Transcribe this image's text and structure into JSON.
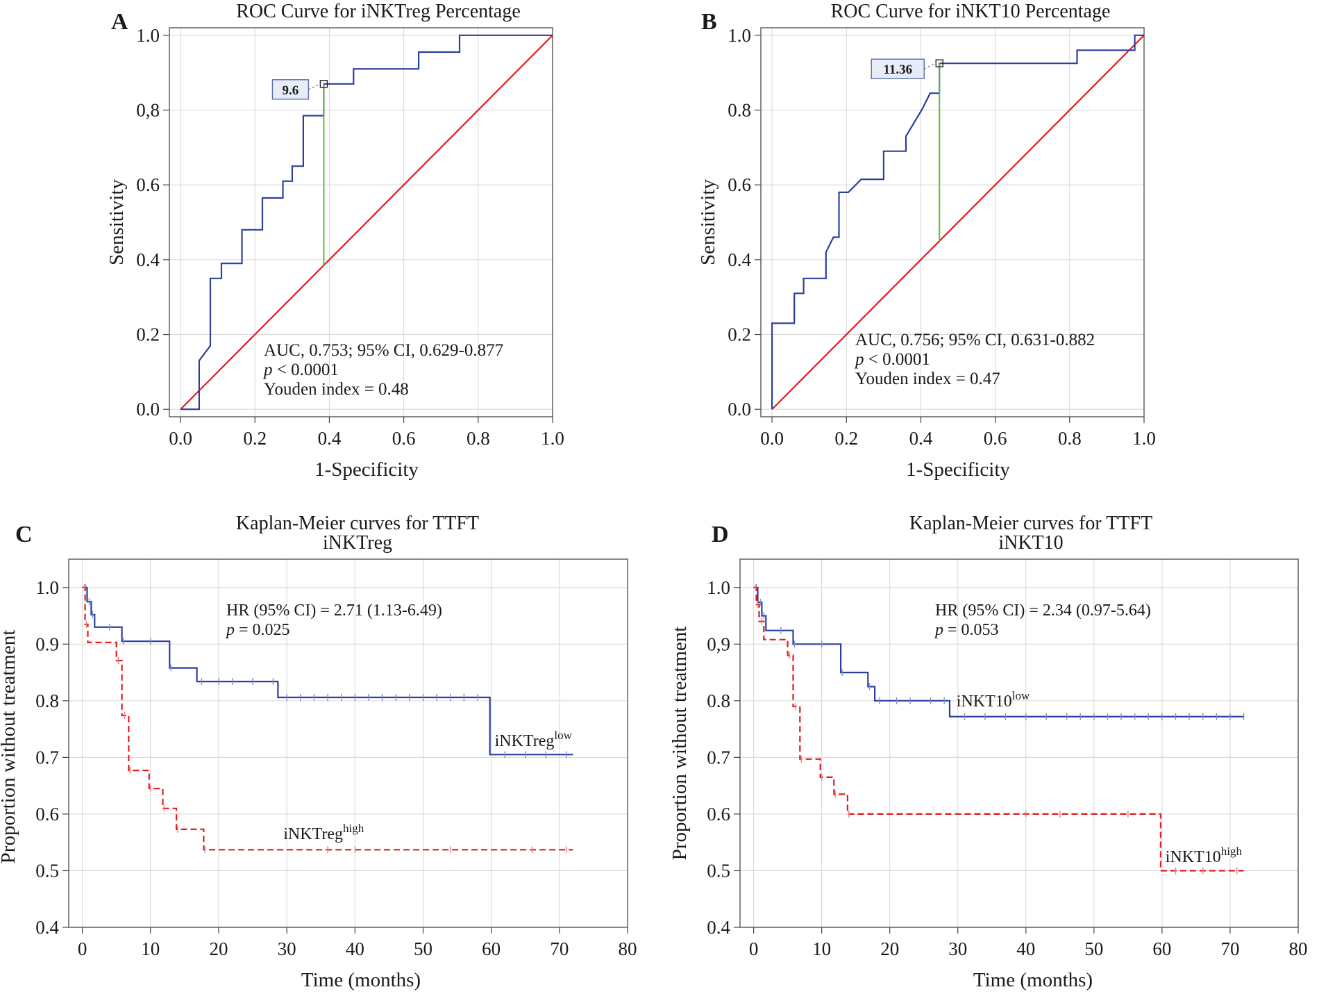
{
  "chart_data": [
    {
      "panel": "A",
      "type": "line",
      "title": "ROC Curve for iNKTreg Percentage",
      "xlabel": "1-Specificity",
      "ylabel": "Sensitivity",
      "xlim": [
        -0.03,
        1.0
      ],
      "ylim": [
        -0.02,
        1.02
      ],
      "xticks": [
        0,
        0.2,
        0.4,
        0.6,
        0.8,
        1.0
      ],
      "xtick_labels": [
        "0.0",
        "0.2",
        "0.4",
        "0.6",
        "0.8",
        "1.0"
      ],
      "yticks": [
        0,
        0.2,
        0.4,
        0.6,
        0.8,
        1.0
      ],
      "ytick_labels": [
        "0.0",
        "0.2",
        "0.4",
        "0.6",
        "0,8",
        "1.0"
      ],
      "roc": [
        [
          0,
          0
        ],
        [
          0.05,
          0
        ],
        [
          0.05,
          0.13
        ],
        [
          0.08,
          0.17
        ],
        [
          0.08,
          0.35
        ],
        [
          0.11,
          0.35
        ],
        [
          0.11,
          0.39
        ],
        [
          0.165,
          0.39
        ],
        [
          0.165,
          0.48
        ],
        [
          0.22,
          0.48
        ],
        [
          0.22,
          0.565
        ],
        [
          0.275,
          0.565
        ],
        [
          0.275,
          0.61
        ],
        [
          0.3,
          0.61
        ],
        [
          0.3,
          0.65
        ],
        [
          0.33,
          0.65
        ],
        [
          0.33,
          0.785
        ],
        [
          0.385,
          0.785
        ],
        [
          0.385,
          0.87
        ],
        [
          0.465,
          0.87
        ],
        [
          0.465,
          0.91
        ],
        [
          0.64,
          0.91
        ],
        [
          0.64,
          0.955
        ],
        [
          0.75,
          0.955
        ],
        [
          0.75,
          1.0
        ],
        [
          1.0,
          1.0
        ]
      ],
      "reference_line": [
        [
          0,
          0
        ],
        [
          1,
          1
        ]
      ],
      "cutoff": {
        "label": "9.6",
        "x": 0.385,
        "sensitivity": 0.87,
        "chance": 0.385
      },
      "annotation": {
        "line1": "AUC, 0.753; 95% CI, 0.629-0.877",
        "p_italic": "p",
        "p_rest": " < 0.0001",
        "line3": "Youden index = 0.48"
      }
    },
    {
      "panel": "B",
      "type": "line",
      "title": "ROC Curve for iNKT10 Percentage",
      "xlabel": "1-Specificity",
      "ylabel": "Sensitivity",
      "xlim": [
        -0.03,
        1.0
      ],
      "ylim": [
        -0.02,
        1.02
      ],
      "xticks": [
        0,
        0.2,
        0.4,
        0.6,
        0.8,
        1.0
      ],
      "xtick_labels": [
        "0.0",
        "0.2",
        "0.4",
        "0.6",
        "0.8",
        "1.0"
      ],
      "yticks": [
        0,
        0.2,
        0.4,
        0.6,
        0.8,
        1.0
      ],
      "ytick_labels": [
        "0.0",
        "0.2",
        "0.4",
        "0.6",
        "0.8",
        "1.0"
      ],
      "roc": [
        [
          0,
          0
        ],
        [
          0,
          0.23
        ],
        [
          0.06,
          0.23
        ],
        [
          0.06,
          0.31
        ],
        [
          0.085,
          0.31
        ],
        [
          0.085,
          0.35
        ],
        [
          0.145,
          0.35
        ],
        [
          0.145,
          0.42
        ],
        [
          0.165,
          0.46
        ],
        [
          0.18,
          0.46
        ],
        [
          0.18,
          0.58
        ],
        [
          0.205,
          0.58
        ],
        [
          0.24,
          0.615
        ],
        [
          0.3,
          0.615
        ],
        [
          0.3,
          0.69
        ],
        [
          0.36,
          0.69
        ],
        [
          0.36,
          0.73
        ],
        [
          0.405,
          0.805
        ],
        [
          0.425,
          0.845
        ],
        [
          0.45,
          0.845
        ],
        [
          0.45,
          0.925
        ],
        [
          0.82,
          0.925
        ],
        [
          0.82,
          0.96
        ],
        [
          0.975,
          0.96
        ],
        [
          0.975,
          1.0
        ],
        [
          1.0,
          1.0
        ]
      ],
      "reference_line": [
        [
          0,
          0
        ],
        [
          1,
          1
        ]
      ],
      "cutoff": {
        "label": "11.36",
        "x": 0.45,
        "sensitivity": 0.925,
        "chance": 0.45
      },
      "annotation": {
        "line1": "AUC, 0.756; 95% CI, 0.631-0.882",
        "p_italic": "p",
        "p_rest": " < 0.0001",
        "line3": "Youden index = 0.47"
      }
    },
    {
      "panel": "C",
      "type": "line",
      "title": "Kaplan-Meier curves for TTFT",
      "subtitle": "iNKTreg",
      "xlabel": "Time (months)",
      "ylabel": "Proportion without treatment",
      "xlim": [
        -2,
        80
      ],
      "ylim": [
        0.4,
        1.05
      ],
      "xticks": [
        0,
        10,
        20,
        30,
        40,
        50,
        60,
        70,
        80
      ],
      "xtick_labels": [
        "0",
        "10",
        "20",
        "30",
        "40",
        "50",
        "60",
        "70",
        "80"
      ],
      "yticks": [
        0.4,
        0.5,
        0.6,
        0.7,
        0.8,
        0.9,
        1.0
      ],
      "ytick_labels": [
        "0.4",
        "0.5",
        "0.6",
        "0.7",
        "0.8",
        "0.9",
        "1.0"
      ],
      "annotation": {
        "hr": "HR (95% CI) = 2.71 (1.13-6.49)",
        "p_italic": "p",
        "p_rest": " = 0.025"
      },
      "series": [
        {
          "name": "iNKTreg",
          "superscript": "low",
          "style": "solid",
          "color": "#2b3f9e",
          "steps": [
            [
              0,
              1.0
            ],
            [
              0.7,
              0.975
            ],
            [
              1.3,
              0.952
            ],
            [
              1.8,
              0.93
            ],
            [
              5.8,
              0.905
            ],
            [
              12.8,
              0.858
            ],
            [
              16.8,
              0.834
            ],
            [
              28.7,
              0.806
            ],
            [
              59.8,
              0.705
            ],
            [
              72,
              0.705
            ]
          ],
          "censored": [
            0.5,
            1.0,
            1.5,
            4,
            6,
            10,
            13,
            17.5,
            20,
            22,
            25,
            28,
            30,
            32,
            34,
            36,
            38,
            40,
            42,
            44,
            46,
            48,
            50,
            52,
            54,
            56,
            58,
            62,
            65,
            68,
            71
          ],
          "label_at": [
            60.5,
            0.72
          ]
        },
        {
          "name": "iNKTreg",
          "superscript": "high",
          "style": "dashed",
          "color": "#e31a1c",
          "steps": [
            [
              0,
              1.0
            ],
            [
              0.4,
              0.935
            ],
            [
              0.8,
              0.903
            ],
            [
              5.0,
              0.871
            ],
            [
              5.8,
              0.774
            ],
            [
              6.8,
              0.677
            ],
            [
              9.8,
              0.645
            ],
            [
              11.8,
              0.61
            ],
            [
              13.8,
              0.573
            ],
            [
              17.8,
              0.537
            ],
            [
              72,
              0.537
            ]
          ],
          "censored": [
            0.3,
            0.6,
            5.3,
            6.2,
            7,
            10,
            12,
            14,
            18,
            36,
            40,
            54,
            66,
            71
          ],
          "label_at": [
            29.5,
            0.556
          ]
        }
      ]
    },
    {
      "panel": "D",
      "type": "line",
      "title": "Kaplan-Meier curves for TTFT",
      "subtitle": "iNKT10",
      "xlabel": "Time (months)",
      "ylabel": "Proportion without treatment",
      "xlim": [
        -2,
        80
      ],
      "ylim": [
        0.4,
        1.05
      ],
      "xticks": [
        0,
        10,
        20,
        30,
        40,
        50,
        60,
        70,
        80
      ],
      "xtick_labels": [
        "0",
        "10",
        "20",
        "30",
        "40",
        "50",
        "60",
        "70",
        "80"
      ],
      "yticks": [
        0.4,
        0.5,
        0.6,
        0.7,
        0.8,
        0.9,
        1.0
      ],
      "ytick_labels": [
        "0.4",
        "0.5",
        "0.6",
        "0.7",
        "0.8",
        "0,9",
        "1.0"
      ],
      "annotation": {
        "hr": "HR (95% CI) = 2.34 (0.97-5.64)",
        "p_italic": "p",
        "p_rest": " = 0.053"
      },
      "series": [
        {
          "name": "iNKT10",
          "superscript": "low",
          "style": "solid",
          "color": "#2b3f9e",
          "steps": [
            [
              0,
              1.0
            ],
            [
              0.6,
              0.974
            ],
            [
              1.2,
              0.95
            ],
            [
              1.8,
              0.924
            ],
            [
              5.8,
              0.9
            ],
            [
              12.8,
              0.85
            ],
            [
              16.8,
              0.825
            ],
            [
              17.8,
              0.8
            ],
            [
              28.8,
              0.772
            ],
            [
              72,
              0.772
            ]
          ],
          "censored": [
            0.4,
            1.0,
            1.5,
            4,
            6,
            10,
            13,
            17,
            18.5,
            21,
            23,
            26,
            28,
            31,
            34,
            37,
            40,
            43,
            46,
            48,
            50,
            52,
            54,
            56,
            58,
            60,
            62,
            64,
            66,
            68,
            70,
            72
          ],
          "label_at": [
            29.8,
            0.79
          ]
        },
        {
          "name": "iNKT10",
          "superscript": "high",
          "style": "dashed",
          "color": "#e31a1c",
          "steps": [
            [
              0,
              1.0
            ],
            [
              0.4,
              0.97
            ],
            [
              0.8,
              0.94
            ],
            [
              1.5,
              0.908
            ],
            [
              5.0,
              0.88
            ],
            [
              5.8,
              0.79
            ],
            [
              6.8,
              0.697
            ],
            [
              9.8,
              0.665
            ],
            [
              11.8,
              0.635
            ],
            [
              13.8,
              0.6
            ],
            [
              59.8,
              0.5
            ],
            [
              72,
              0.5
            ]
          ],
          "censored": [
            0.3,
            0.6,
            1.2,
            5.3,
            6.2,
            7,
            10,
            12,
            14,
            40,
            45,
            55,
            62,
            66,
            71
          ],
          "label_at": [
            60.5,
            0.515
          ]
        }
      ]
    }
  ]
}
